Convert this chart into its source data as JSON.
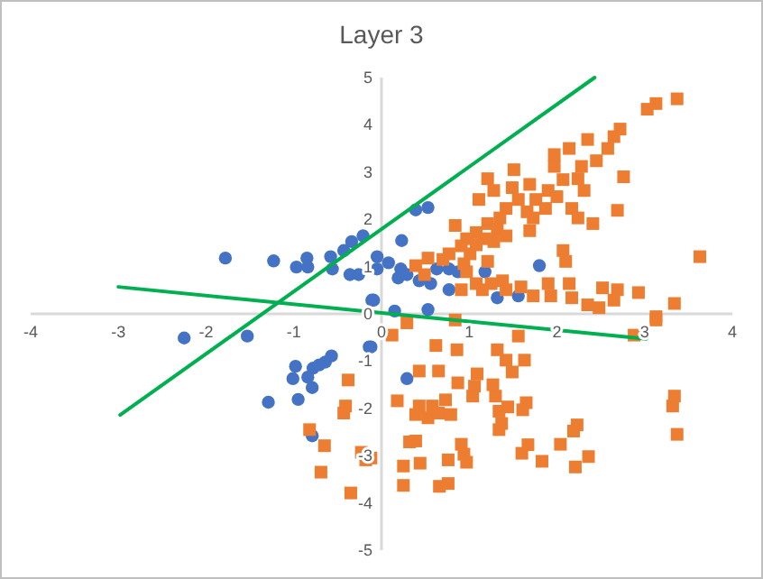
{
  "chart_data": {
    "type": "scatter",
    "title": "Layer 3",
    "xlim": [
      -4,
      4
    ],
    "ylim": [
      -5,
      5
    ],
    "xticks": [
      -4,
      -3,
      -2,
      -1,
      0,
      1,
      2,
      3,
      4
    ],
    "yticks": [
      -5,
      -4,
      -3,
      -2,
      -1,
      0,
      1,
      2,
      3,
      4,
      5
    ],
    "grid": false,
    "series": [
      {
        "marker": "circle",
        "color": "#4472c4",
        "x": [
          -1.78,
          -1.23,
          -0.97,
          -0.85,
          -0.84,
          -0.58,
          -0.56,
          -0.43,
          -0.34,
          -0.21,
          -0.36,
          -0.26,
          -0.05,
          -0.11,
          0.39,
          0.53,
          0.23,
          -0.05,
          0.08,
          0.22,
          0.19,
          0.56,
          0.63,
          0.77,
          0.87,
          1.18,
          1.8,
          0.77,
          1.32,
          1.56,
          -0.09,
          0.15,
          0.53,
          0.43,
          0.29,
          -2.25,
          -1.53,
          -0.14,
          -0.57,
          -0.64,
          -0.71,
          -0.78,
          -0.98,
          -1.01,
          -0.84,
          -0.79,
          -0.95,
          -1.29,
          -0.79,
          -0.12,
          0.29
        ],
        "values": [
          1.18,
          1.12,
          0.99,
          1.18,
          0.99,
          1.21,
          0.95,
          1.34,
          1.53,
          1.65,
          0.83,
          0.83,
          0.95,
          0.29,
          2.2,
          2.25,
          1.55,
          1.21,
          1.08,
          0.95,
          0.76,
          0.64,
          0.95,
          0.95,
          0.89,
          0.89,
          1.02,
          0.51,
          0.34,
          0.38,
          0.29,
          0.06,
          0.09,
          0.7,
          0.83,
          -0.51,
          -0.47,
          -0.7,
          -0.89,
          -1.02,
          -1.08,
          -1.15,
          -1.11,
          -1.37,
          -1.34,
          -1.56,
          -1.81,
          -1.87,
          -2.58,
          -0.7,
          -1.37
        ]
      },
      {
        "marker": "square",
        "color": "#ed7d31",
        "x": [
          3.37,
          3.13,
          3.03,
          2.72,
          2.65,
          2.58,
          2.35,
          2.14,
          1.97,
          2.45,
          2.28,
          1.97,
          1.51,
          2.24,
          2.31,
          1.21,
          2.76,
          2.07,
          1.28,
          1.49,
          1.69,
          1.9,
          1.11,
          1.56,
          1.76,
          2.0,
          1.42,
          1.66,
          1.87,
          2.17,
          2.69,
          1.35,
          1.73,
          2.24,
          2.41,
          0.84,
          1.21,
          1.32,
          1.08,
          1.69,
          1.42,
          0.97,
          1.18,
          0.91,
          1.08,
          1.28,
          0.77,
          1.01,
          2.07,
          2.1,
          3.63,
          0.53,
          0.7,
          0.94,
          1.21,
          0.39,
          0.97,
          0.49,
          1.38,
          1.08,
          1.25,
          0.91,
          1.15,
          1.42,
          1.59,
          1.9,
          2.14,
          1.73,
          1.93,
          2.17,
          2.52,
          2.69,
          2.93,
          2.35,
          2.48,
          2.65,
          3.34,
          3.13,
          0.29,
          0.84,
          0.12,
          1.56,
          2.88,
          3.13,
          0.62,
          0.86,
          1.32,
          1.42,
          1.63,
          1.49,
          0.43,
          0.65,
          1.09,
          0.87,
          1.27,
          1.06,
          1.04,
          1.3,
          0.18,
          0.73,
          0.43,
          0.58,
          1.44,
          1.65,
          1.61,
          1.34,
          0.39,
          0.53,
          0.65,
          0.79,
          1.37,
          1.34,
          2.23,
          2.19,
          3.34,
          3.32,
          3.37,
          0.32,
          0.39,
          0.91,
          0.94,
          0.97,
          1.67,
          1.6,
          2.04,
          0.25,
          0.44,
          0.76,
          1.83,
          2.36,
          2.21,
          0.25,
          0.66,
          0.76,
          -0.12,
          -0.38,
          -0.41,
          -0.43,
          -0.82,
          -0.65,
          -0.23,
          -0.18,
          -0.69,
          -0.35
        ],
        "values": [
          4.55,
          4.45,
          4.33,
          3.91,
          3.75,
          3.5,
          3.69,
          3.5,
          3.37,
          3.24,
          3.12,
          3.12,
          3.05,
          2.86,
          2.61,
          2.86,
          2.9,
          2.84,
          2.61,
          2.67,
          2.74,
          2.61,
          2.42,
          2.42,
          2.42,
          2.48,
          2.23,
          2.16,
          2.23,
          2.23,
          2.19,
          2.03,
          2.03,
          2.03,
          1.91,
          1.87,
          1.91,
          1.78,
          1.72,
          1.76,
          1.65,
          1.59,
          1.59,
          1.44,
          1.46,
          1.53,
          1.27,
          1.27,
          1.34,
          1.11,
          1.21,
          1.18,
          1.15,
          1.06,
          1.11,
          1.02,
          0.89,
          0.83,
          0.7,
          0.64,
          0.64,
          0.51,
          0.51,
          0.51,
          0.57,
          0.64,
          0.64,
          0.38,
          0.38,
          0.34,
          0.55,
          0.51,
          0.45,
          0.19,
          0.13,
          0.29,
          0.22,
          -0.06,
          -0.19,
          -0.13,
          -0.45,
          -0.47,
          -0.45,
          -0.13,
          -0.67,
          -0.76,
          -0.76,
          -0.98,
          -0.98,
          -1.23,
          -1.21,
          -1.21,
          -1.27,
          -1.46,
          -1.5,
          -1.53,
          -1.74,
          -1.74,
          -1.84,
          -1.82,
          -1.95,
          -1.95,
          -1.97,
          -1.88,
          -2.03,
          -2.06,
          -2.13,
          -2.2,
          -2.1,
          -2.13,
          -2.32,
          -2.45,
          -2.35,
          -2.48,
          -1.74,
          -1.95,
          -2.55,
          -2.71,
          -2.69,
          -2.76,
          -2.97,
          -3.14,
          -2.77,
          -2.95,
          -2.76,
          -3.22,
          -3.16,
          -3.09,
          -3.12,
          -3.02,
          -3.24,
          -3.63,
          -3.65,
          -3.59,
          -3.05,
          -1.4,
          -1.95,
          -2.1,
          -2.45,
          -2.79,
          -2.93,
          -3.09,
          -3.35,
          -3.79
        ]
      },
      {
        "type": "line",
        "marker": "none",
        "line_style": "solid",
        "color": "#00b050",
        "x": [
          -2.98,
          2.43
        ],
        "values": [
          -2.14,
          5
        ]
      },
      {
        "type": "line",
        "marker": "none",
        "line_style": "solid",
        "color": "#00b050",
        "x": [
          -3,
          3.02
        ],
        "values": [
          0.57,
          -0.53
        ]
      }
    ]
  }
}
